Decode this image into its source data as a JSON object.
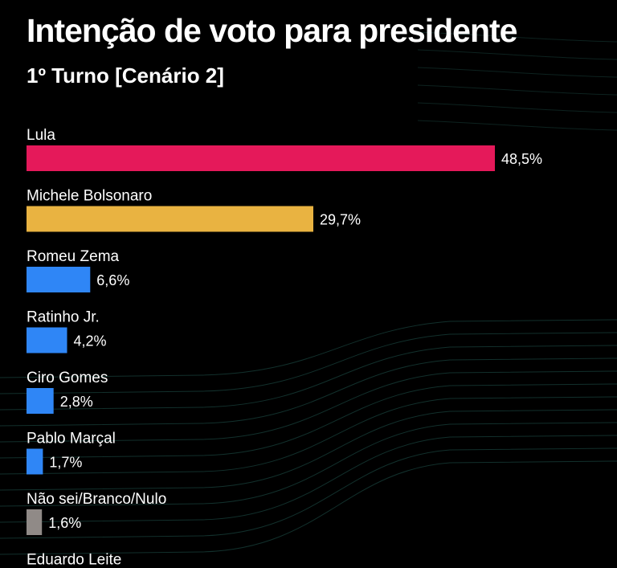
{
  "title": "Intenção de voto para presidente",
  "subtitle": "1º Turno [Cenário 2]",
  "colors": {
    "background": "#000000",
    "lula": "#e5195a",
    "michele": "#e9b341",
    "others": "#2f86f6",
    "undecided": "#908a87",
    "bg_lines": "#12302c"
  },
  "chart_data": {
    "type": "bar",
    "orientation": "horizontal",
    "title": "Intenção de voto para presidente",
    "subtitle": "1º Turno [Cenário 2]",
    "xlim": [
      0,
      60
    ],
    "grid": false,
    "legend": "none",
    "categories": [
      "Lula",
      "Michele Bolsonaro",
      "Romeu Zema",
      "Ratinho Jr.",
      "Ciro Gomes",
      "Pablo Marçal",
      "Não sei/Branco/Nulo",
      "Eduardo Leite"
    ],
    "values": [
      48.5,
      29.7,
      6.6,
      4.2,
      2.8,
      1.7,
      1.6,
      null
    ],
    "value_labels": [
      "48,5%",
      "29,7%",
      "6,6%",
      "4,2%",
      "2,8%",
      "1,7%",
      "1,6%",
      ""
    ],
    "bar_colors": [
      "#e5195a",
      "#e9b341",
      "#2f86f6",
      "#2f86f6",
      "#2f86f6",
      "#2f86f6",
      "#908a87",
      "#2f86f6"
    ]
  }
}
